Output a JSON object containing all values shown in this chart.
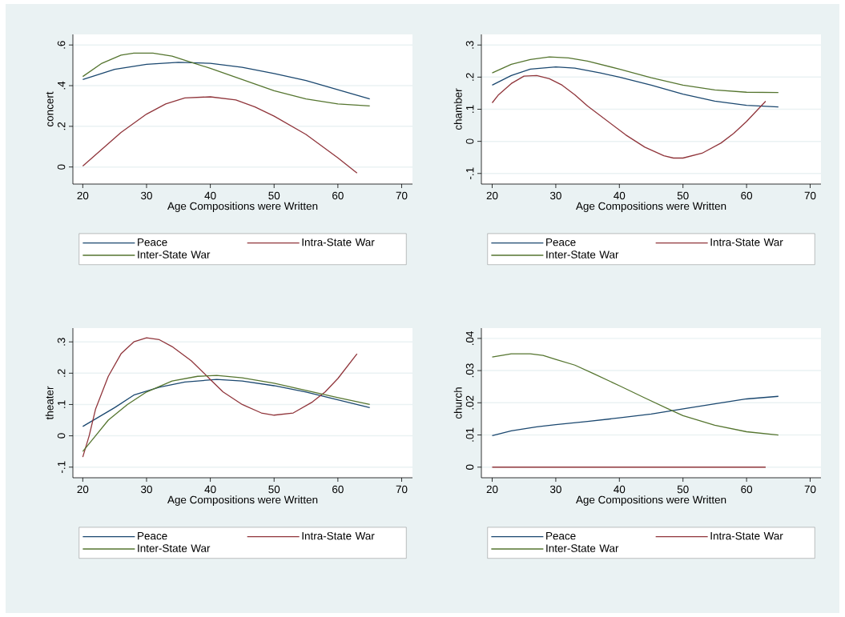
{
  "chart_data": [
    {
      "type": "line",
      "xlabel": "Age Compositions were Written",
      "ylabel": "concert",
      "xlim": [
        18.45,
        71.7
      ],
      "xticks": [
        20,
        30,
        40,
        50,
        60,
        70
      ],
      "ylim": [
        -0.084,
        0.652
      ],
      "yticks": [
        {
          "value": 0,
          "label": "0"
        },
        {
          "value": 0.2,
          "label": ".2"
        },
        {
          "value": 0.4,
          "label": ".4"
        },
        {
          "value": 0.6,
          "label": ".6"
        }
      ],
      "grid": "y",
      "legend": "bottom",
      "series": [
        {
          "name": "Peace",
          "color": "#1a476f",
          "x": [
            20,
            25,
            30,
            35,
            40,
            45,
            50,
            55,
            60,
            65
          ],
          "values": [
            0.43,
            0.48,
            0.505,
            0.515,
            0.51,
            0.49,
            0.46,
            0.425,
            0.38,
            0.335
          ]
        },
        {
          "name": "Intra-State War",
          "color": "#90353b",
          "x": [
            20,
            22,
            26,
            30,
            33,
            36,
            40,
            44,
            47,
            50,
            55,
            60,
            63
          ],
          "values": [
            0.005,
            0.06,
            0.17,
            0.26,
            0.31,
            0.34,
            0.345,
            0.33,
            0.295,
            0.25,
            0.16,
            0.045,
            -0.03
          ]
        },
        {
          "name": "Inter-State War",
          "color": "#55752f",
          "x": [
            20,
            23,
            26,
            28,
            31,
            34,
            37,
            40,
            45,
            50,
            55,
            60,
            65
          ],
          "values": [
            0.445,
            0.51,
            0.55,
            0.56,
            0.56,
            0.545,
            0.515,
            0.485,
            0.43,
            0.375,
            0.335,
            0.31,
            0.3
          ]
        }
      ]
    },
    {
      "type": "line",
      "xlabel": "Age Compositions were Written",
      "ylabel": "chamber",
      "xlim": [
        18.3,
        71.7
      ],
      "xticks": [
        20,
        30,
        40,
        50,
        60,
        70
      ],
      "ylim": [
        -0.133,
        0.333
      ],
      "yticks": [
        {
          "value": -0.1,
          "label": "-.1"
        },
        {
          "value": 0,
          "label": "0"
        },
        {
          "value": 0.1,
          "label": ".1"
        },
        {
          "value": 0.2,
          "label": ".2"
        },
        {
          "value": 0.3,
          "label": ".3"
        }
      ],
      "grid": "y",
      "legend": "bottom",
      "series": [
        {
          "name": "Peace",
          "color": "#1a476f",
          "x": [
            20,
            23,
            26,
            30,
            33,
            37,
            40,
            45,
            50,
            55,
            60,
            65
          ],
          "values": [
            0.175,
            0.205,
            0.225,
            0.232,
            0.228,
            0.213,
            0.2,
            0.175,
            0.147,
            0.125,
            0.112,
            0.107
          ]
        },
        {
          "name": "Intra-State War",
          "color": "#90353b",
          "x": [
            20,
            21,
            23,
            25,
            27,
            29,
            31,
            33,
            35,
            38,
            41,
            44,
            47,
            48.5,
            50,
            53,
            56,
            58,
            60,
            63
          ],
          "values": [
            0.12,
            0.145,
            0.18,
            0.203,
            0.205,
            0.195,
            0.175,
            0.145,
            0.11,
            0.065,
            0.02,
            -0.018,
            -0.045,
            -0.052,
            -0.052,
            -0.037,
            -0.005,
            0.025,
            0.062,
            0.125
          ]
        },
        {
          "name": "Inter-State War",
          "color": "#55752f",
          "x": [
            20,
            23,
            26,
            29,
            32,
            35,
            40,
            45,
            50,
            55,
            60,
            65
          ],
          "values": [
            0.213,
            0.24,
            0.255,
            0.263,
            0.26,
            0.25,
            0.225,
            0.198,
            0.175,
            0.16,
            0.153,
            0.152
          ]
        }
      ]
    },
    {
      "type": "line",
      "xlabel": "Age Compositions were Written",
      "ylabel": "theater",
      "xlim": [
        18.45,
        71.7
      ],
      "xticks": [
        20,
        30,
        40,
        50,
        60,
        70
      ],
      "ylim": [
        -0.134,
        0.344
      ],
      "yticks": [
        {
          "value": -0.1,
          "label": "-.1"
        },
        {
          "value": 0,
          "label": "0"
        },
        {
          "value": 0.1,
          "label": ".1"
        },
        {
          "value": 0.2,
          "label": ".2"
        },
        {
          "value": 0.3,
          "label": ".3"
        }
      ],
      "grid": "y",
      "legend": "bottom",
      "series": [
        {
          "name": "Peace",
          "color": "#1a476f",
          "x": [
            20,
            25,
            28,
            32,
            36,
            41,
            45,
            50,
            55,
            60,
            65
          ],
          "values": [
            0.03,
            0.09,
            0.13,
            0.155,
            0.172,
            0.18,
            0.175,
            0.16,
            0.14,
            0.115,
            0.09
          ]
        },
        {
          "name": "Intra-State War",
          "color": "#90353b",
          "x": [
            20,
            21,
            22,
            24,
            26,
            28,
            30,
            32,
            34,
            37,
            40,
            42,
            45,
            48,
            50,
            53,
            56,
            58,
            60,
            63
          ],
          "values": [
            -0.068,
            0.0,
            0.085,
            0.19,
            0.262,
            0.3,
            0.313,
            0.307,
            0.285,
            0.24,
            0.18,
            0.14,
            0.1,
            0.073,
            0.066,
            0.073,
            0.108,
            0.14,
            0.183,
            0.262
          ]
        },
        {
          "name": "Inter-State War",
          "color": "#55752f",
          "x": [
            20,
            22,
            24,
            27,
            30,
            34,
            38,
            41,
            45,
            50,
            55,
            60,
            65
          ],
          "values": [
            -0.05,
            0.0,
            0.05,
            0.1,
            0.14,
            0.175,
            0.19,
            0.193,
            0.185,
            0.168,
            0.145,
            0.122,
            0.1
          ]
        }
      ]
    },
    {
      "type": "line",
      "xlabel": "Age Compositions were Written",
      "ylabel": "church",
      "xlim": [
        18.3,
        71.7
      ],
      "xticks": [
        20,
        30,
        40,
        50,
        60,
        70
      ],
      "ylim": [
        -0.0033,
        0.0432
      ],
      "yticks": [
        {
          "value": 0,
          "label": "0"
        },
        {
          "value": 0.01,
          "label": ".01"
        },
        {
          "value": 0.02,
          "label": ".02"
        },
        {
          "value": 0.03,
          "label": ".03"
        },
        {
          "value": 0.04,
          "label": ".04"
        }
      ],
      "grid": "y",
      "legend": "bottom",
      "series": [
        {
          "name": "Peace",
          "color": "#1a476f",
          "x": [
            20,
            23,
            27,
            30,
            35,
            40,
            45,
            50,
            55,
            60,
            65
          ],
          "values": [
            0.0098,
            0.0113,
            0.0125,
            0.0132,
            0.0142,
            0.0153,
            0.0165,
            0.0181,
            0.0197,
            0.0212,
            0.022
          ]
        },
        {
          "name": "Intra-State War",
          "color": "#90353b",
          "x": [
            20,
            63
          ],
          "values": [
            0,
            0
          ]
        },
        {
          "name": "Inter-State War",
          "color": "#55752f",
          "x": [
            20,
            23,
            26,
            28,
            30,
            33,
            36,
            40,
            44,
            48,
            50,
            55,
            60,
            65
          ],
          "values": [
            0.0342,
            0.0352,
            0.0352,
            0.0347,
            0.0335,
            0.0317,
            0.029,
            0.0253,
            0.0215,
            0.0178,
            0.016,
            0.013,
            0.011,
            0.01
          ]
        }
      ]
    }
  ]
}
